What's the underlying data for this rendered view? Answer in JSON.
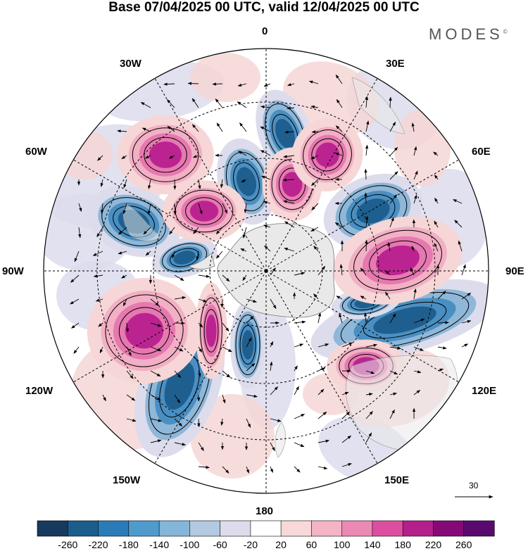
{
  "title": "Base 07/04/2025 00 UTC, valid 12/04/2025 00 UTC",
  "brand": "MODES",
  "brand_mark": "©",
  "longitude_labels": {
    "n0": "0",
    "e30": "30E",
    "e60": "60E",
    "e90": "90E",
    "e120": "120E",
    "e150": "150E",
    "s180": "180",
    "w150": "150W",
    "w120": "120W",
    "w90": "90W",
    "w60": "60W",
    "w30": "30W"
  },
  "reference_vector_label": "30",
  "colorbar": {
    "labels": [
      "-260",
      "-220",
      "-180",
      "-140",
      "-100",
      "-60",
      "-20",
      "20",
      "60",
      "100",
      "140",
      "180",
      "220",
      "260"
    ],
    "colors": [
      "#173a5e",
      "#1b5e8c",
      "#2a7cb8",
      "#4f9bcc",
      "#84b6d9",
      "#b3c8e1",
      "#dcdcec",
      "#ffffff",
      "#f8d8d8",
      "#f4b4c6",
      "#ec88b4",
      "#dc4fa0",
      "#b51f8c",
      "#850a78",
      "#5a0a6e"
    ]
  },
  "map": {
    "projection": "south-polar-stereographic",
    "field_colors": {
      "strong_neg": "#1f5f8f",
      "mid_neg": "#4a8fc2",
      "weak_neg": "#8fb7d8",
      "faint_neg": "#dcdcec",
      "faint_pos": "#f6d6d6",
      "weak_pos": "#f2b0c4",
      "mid_pos": "#e679b0",
      "strong_pos": "#bb2490",
      "land": "#e9e9e9"
    }
  }
}
